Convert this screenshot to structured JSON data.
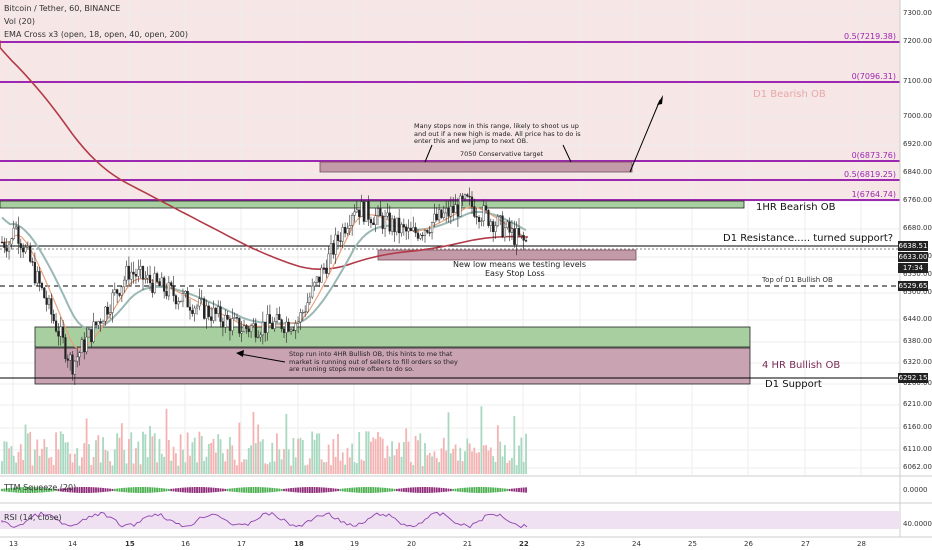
{
  "header": {
    "symbol_line": "Bitcoin / Tether, 60, BINANCE",
    "volume_line": "Vol (20)",
    "ema_line": "EMA Cross x3 (open, 18, open, 40, open, 200)"
  },
  "panes": {
    "ttm": "TTM Squeeze (20)",
    "rsi": "RSI (14, close)",
    "ttm_value": "0.0000",
    "rsi_value": "40.0000"
  },
  "price_axis": {
    "ticks": [
      "7300.00",
      "7200.00",
      "7100.00",
      "7000.00",
      "6920.00",
      "6840.00",
      "6760.00",
      "6680.00",
      "6600.00",
      "6550.00",
      "6500.00",
      "6440.00",
      "6380.00",
      "6320.00",
      "6260.00",
      "6210.00",
      "6160.00",
      "6110.00",
      "6062.00"
    ]
  },
  "time_axis": {
    "ticks": [
      "13",
      "14",
      "15",
      "16",
      "17",
      "18",
      "19",
      "20",
      "21",
      "22",
      "23",
      "24",
      "25",
      "26",
      "27",
      "28"
    ]
  },
  "fib_labels": {
    "f05_upper": "0.5(7219.38)",
    "f0_upper": "0(7096.31)",
    "f0_lower": "0(6873.76)",
    "f05_lower": "0.5(6819.25)",
    "f1": "1(6764.74)"
  },
  "zone_labels": {
    "d1_bearish": "D1 Bearish OB",
    "hr1_bearish": "1HR Bearish OB",
    "d1_resistance": "D1 Resistance..... turned support?",
    "hr4_bullish": "4 HR Bullish OB",
    "d1_support": "D1 Support",
    "top_d1_bullish": "Top of D1 Bullish OB"
  },
  "annotations": {
    "stops_note": "Many stops now in this range, likely to shoot us up\nand out if a new high is made. All price has to do is\nenter this and we jump to next OB.",
    "target": "7050 Conservative target",
    "new_low": "New low means we testing levels",
    "easy_stop": "Easy Stop Loss",
    "stop_run": "Stop run into 4HR Bullish OB, this hints to me that\nmarket is running out of sellers to fill orders so they\nare running stops more often to do so."
  },
  "price_tags": {
    "t1": "6638.51",
    "t2": "6633.00",
    "t3": "17:34",
    "t4": "6529.65",
    "t5": "6292.15"
  },
  "colors": {
    "fib_purple": "#9c27b0",
    "bearish_zone": "#f2d9d9",
    "bullish_zone": "#a8cfa0",
    "purple_box": "#c39aa8",
    "ema200": "#b23a48",
    "ema40": "#9bb8b4",
    "ema18": "#e8a07a"
  },
  "chart_data": {
    "type": "line",
    "title": "Bitcoin / Tether, 60, BINANCE",
    "x": [
      "13",
      "14",
      "15",
      "16",
      "17",
      "18",
      "19",
      "20",
      "21",
      "22"
    ],
    "series": [
      {
        "name": "close",
        "values": [
          6700,
          6300,
          6560,
          6480,
          6400,
          6420,
          6740,
          6660,
          6750,
          6640
        ]
      }
    ],
    "levels": [
      {
        "name": "0.5(7219.38)",
        "value": 7219.38
      },
      {
        "name": "0(7096.31)",
        "value": 7096.31
      },
      {
        "name": "0(6873.76)",
        "value": 6873.76
      },
      {
        "name": "0.5(6819.25)",
        "value": 6819.25
      },
      {
        "name": "1(6764.74)",
        "value": 6764.74
      },
      {
        "name": "D1 Resistance..... turned support?",
        "value": 6638.51
      },
      {
        "name": "Top of D1 Bullish OB",
        "value": 6529.65
      },
      {
        "name": "D1 Support",
        "value": 6292.15
      }
    ],
    "ylim": [
      6040,
      7330
    ],
    "grid": true
  }
}
